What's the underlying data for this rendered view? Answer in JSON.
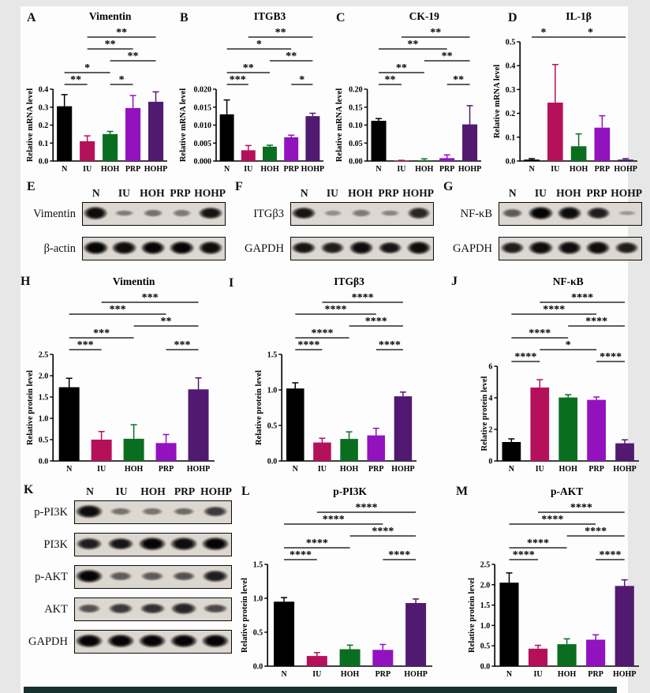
{
  "figure": {
    "background": "#e7e7e7",
    "canvas_color": "#fdfdfd",
    "bottom_bar_color": "#16312e",
    "categories": [
      "N",
      "IU",
      "HOH",
      "PRP",
      "HOHP"
    ],
    "group_colors": {
      "N": "#000000",
      "IU": "#b5115a",
      "HOH": "#0a6e21",
      "PRP": "#9212be",
      "HOHP": "#511a70"
    }
  },
  "chart_data": [
    {
      "panel": "A",
      "type": "bar",
      "title": "Vimentin",
      "ylabel": "Relative mRNA level",
      "ylim": [
        0,
        0.4
      ],
      "yticks": [
        0,
        0.1,
        0.2,
        0.3,
        0.4
      ],
      "ytick_decimals": 1,
      "categories": [
        "N",
        "IU",
        "HOH",
        "PRP",
        "HOHP"
      ],
      "values": [
        0.305,
        0.11,
        0.15,
        0.295,
        0.33
      ],
      "errors": [
        0.065,
        0.03,
        0.015,
        0.07,
        0.055
      ],
      "significance": [
        {
          "from": "N",
          "to": "IU",
          "stars": "**",
          "row": 0
        },
        {
          "from": "HOH",
          "to": "PRP",
          "stars": "*",
          "row": 0
        },
        {
          "from": "N",
          "to": "HOH",
          "stars": "*",
          "row": 1
        },
        {
          "from": "HOH",
          "to": "HOHP",
          "stars": "**",
          "row": 2
        },
        {
          "from": "IU",
          "to": "PRP",
          "stars": "**",
          "row": 3
        },
        {
          "from": "IU",
          "to": "HOHP",
          "stars": "**",
          "row": 4
        }
      ]
    },
    {
      "panel": "B",
      "type": "bar",
      "title": "ITGB3",
      "ylabel": "Relative mRNA level",
      "ylim": [
        0,
        0.02
      ],
      "yticks": [
        0,
        0.005,
        0.01,
        0.015,
        0.02
      ],
      "ytick_decimals": 3,
      "categories": [
        "N",
        "IU",
        "HOH",
        "PRP",
        "HOHP"
      ],
      "values": [
        0.013,
        0.003,
        0.004,
        0.0066,
        0.0125
      ],
      "errors": [
        0.004,
        0.0013,
        0.0004,
        0.0006,
        0.0008
      ],
      "significance": [
        {
          "from": "N",
          "to": "IU",
          "stars": "***",
          "row": 0
        },
        {
          "from": "PRP",
          "to": "HOHP",
          "stars": "*",
          "row": 0
        },
        {
          "from": "N",
          "to": "HOH",
          "stars": "**",
          "row": 1
        },
        {
          "from": "HOH",
          "to": "HOHP",
          "stars": "**",
          "row": 2
        },
        {
          "from": "N",
          "to": "PRP",
          "stars": "*",
          "row": 3
        },
        {
          "from": "IU",
          "to": "HOHP",
          "stars": "**",
          "row": 4
        }
      ]
    },
    {
      "panel": "C",
      "type": "bar",
      "title": "CK-19",
      "ylabel": "Relative mRNA level",
      "ylim": [
        0,
        0.2
      ],
      "yticks": [
        0,
        0.05,
        0.1,
        0.15,
        0.2
      ],
      "ytick_decimals": 2,
      "categories": [
        "N",
        "IU",
        "HOH",
        "PRP",
        "HOHP"
      ],
      "values": [
        0.112,
        0.001,
        0.002,
        0.008,
        0.102
      ],
      "errors": [
        0.006,
        0.001,
        0.004,
        0.009,
        0.052
      ],
      "significance": [
        {
          "from": "N",
          "to": "IU",
          "stars": "**",
          "row": 0
        },
        {
          "from": "PRP",
          "to": "HOHP",
          "stars": "**",
          "row": 0
        },
        {
          "from": "N",
          "to": "HOH",
          "stars": "**",
          "row": 1
        },
        {
          "from": "HOH",
          "to": "HOHP",
          "stars": "**",
          "row": 2
        },
        {
          "from": "N",
          "to": "PRP",
          "stars": "**",
          "row": 3
        },
        {
          "from": "IU",
          "to": "HOHP",
          "stars": "**",
          "row": 4
        }
      ]
    },
    {
      "panel": "D",
      "type": "bar",
      "title": "IL-1β",
      "ylabel": "Relative mRNA level",
      "ylim": [
        0,
        0.5
      ],
      "yticks": [
        0,
        0.1,
        0.2,
        0.3,
        0.4,
        0.5
      ],
      "ytick_decimals": 1,
      "categories": [
        "N",
        "IU",
        "HOH",
        "PRP",
        "HOHP"
      ],
      "values": [
        0.006,
        0.245,
        0.062,
        0.14,
        0.006
      ],
      "errors": [
        0.004,
        0.16,
        0.052,
        0.05,
        0.004
      ],
      "significance": [
        {
          "from": "N",
          "to": "IU",
          "stars": "*",
          "row": 0
        },
        {
          "from": "IU",
          "to": "HOHP",
          "stars": "*",
          "row": 0
        }
      ]
    },
    {
      "panel": "H",
      "type": "bar",
      "title": "Vimentin",
      "ylabel": "Relative protein level",
      "ylim": [
        0,
        2.5
      ],
      "yticks": [
        0,
        0.5,
        1,
        1.5,
        2,
        2.5
      ],
      "ytick_decimals": 1,
      "categories": [
        "N",
        "IU",
        "HOH",
        "PRP",
        "HOHP"
      ],
      "values": [
        1.73,
        0.5,
        0.52,
        0.42,
        1.68
      ],
      "errors": [
        0.21,
        0.19,
        0.33,
        0.2,
        0.27
      ],
      "significance": [
        {
          "from": "N",
          "to": "IU",
          "stars": "***",
          "row": 0
        },
        {
          "from": "PRP",
          "to": "HOHP",
          "stars": "***",
          "row": 0
        },
        {
          "from": "N",
          "to": "HOH",
          "stars": "***",
          "row": 1
        },
        {
          "from": "HOH",
          "to": "HOHP",
          "stars": "**",
          "row": 2
        },
        {
          "from": "N",
          "to": "PRP",
          "stars": "***",
          "row": 3
        },
        {
          "from": "IU",
          "to": "HOHP",
          "stars": "***",
          "row": 4
        }
      ]
    },
    {
      "panel": "I",
      "type": "bar",
      "title": "ITGβ3",
      "ylabel": "Relative protein level",
      "ylim": [
        0,
        1.5
      ],
      "yticks": [
        0,
        0.5,
        1,
        1.5
      ],
      "ytick_decimals": 1,
      "categories": [
        "N",
        "IU",
        "HOH",
        "PRP",
        "HOHP"
      ],
      "values": [
        1.02,
        0.26,
        0.31,
        0.36,
        0.91
      ],
      "errors": [
        0.08,
        0.06,
        0.1,
        0.1,
        0.06
      ],
      "significance": [
        {
          "from": "N",
          "to": "IU",
          "stars": "****",
          "row": 0
        },
        {
          "from": "PRP",
          "to": "HOHP",
          "stars": "****",
          "row": 0
        },
        {
          "from": "N",
          "to": "HOH",
          "stars": "****",
          "row": 1
        },
        {
          "from": "HOH",
          "to": "HOHP",
          "stars": "****",
          "row": 2
        },
        {
          "from": "N",
          "to": "PRP",
          "stars": "****",
          "row": 3
        },
        {
          "from": "IU",
          "to": "HOHP",
          "stars": "****",
          "row": 4
        }
      ]
    },
    {
      "panel": "J",
      "type": "bar",
      "title": "NF-κB",
      "ylabel": "Relative protein level",
      "ylim": [
        0,
        6
      ],
      "yticks": [
        0,
        2,
        4,
        6
      ],
      "ytick_decimals": 0,
      "categories": [
        "N",
        "IU",
        "HOH",
        "PRP",
        "HOHP"
      ],
      "values": [
        1.2,
        4.65,
        4.02,
        3.87,
        1.12
      ],
      "errors": [
        0.2,
        0.5,
        0.18,
        0.18,
        0.22
      ],
      "significance": [
        {
          "from": "N",
          "to": "IU",
          "stars": "****",
          "row": 0
        },
        {
          "from": "PRP",
          "to": "HOHP",
          "stars": "****",
          "row": 0
        },
        {
          "from": "IU",
          "to": "PRP",
          "stars": "*",
          "row": 1
        },
        {
          "from": "N",
          "to": "HOH",
          "stars": "****",
          "row": 2
        },
        {
          "from": "HOH",
          "to": "HOHP",
          "stars": "****",
          "row": 3
        },
        {
          "from": "N",
          "to": "PRP",
          "stars": "****",
          "row": 4
        },
        {
          "from": "IU",
          "to": "HOHP",
          "stars": "****",
          "row": 5
        }
      ]
    },
    {
      "panel": "L",
      "type": "bar",
      "title": "p-PI3K",
      "ylabel": "Relative protein level",
      "ylim": [
        0,
        1.5
      ],
      "yticks": [
        0,
        0.5,
        1,
        1.5
      ],
      "ytick_decimals": 1,
      "categories": [
        "N",
        "IU",
        "HOH",
        "PRP",
        "HOHP"
      ],
      "values": [
        0.95,
        0.15,
        0.25,
        0.24,
        0.93
      ],
      "errors": [
        0.06,
        0.05,
        0.06,
        0.08,
        0.06
      ],
      "significance": [
        {
          "from": "N",
          "to": "IU",
          "stars": "****",
          "row": 0
        },
        {
          "from": "PRP",
          "to": "HOHP",
          "stars": "****",
          "row": 0
        },
        {
          "from": "N",
          "to": "HOH",
          "stars": "****",
          "row": 1
        },
        {
          "from": "HOH",
          "to": "HOHP",
          "stars": "****",
          "row": 2
        },
        {
          "from": "N",
          "to": "PRP",
          "stars": "****",
          "row": 3
        },
        {
          "from": "IU",
          "to": "HOHP",
          "stars": "****",
          "row": 4
        }
      ]
    },
    {
      "panel": "M",
      "type": "bar",
      "title": "p-AKT",
      "ylabel": "Relative protein level",
      "ylim": [
        0,
        2.5
      ],
      "yticks": [
        0,
        0.5,
        1,
        1.5,
        2,
        2.5
      ],
      "ytick_decimals": 1,
      "categories": [
        "N",
        "IU",
        "HOH",
        "PRP",
        "HOHP"
      ],
      "values": [
        2.05,
        0.43,
        0.54,
        0.65,
        1.97
      ],
      "errors": [
        0.24,
        0.08,
        0.13,
        0.12,
        0.15
      ],
      "significance": [
        {
          "from": "N",
          "to": "IU",
          "stars": "****",
          "row": 0
        },
        {
          "from": "PRP",
          "to": "HOHP",
          "stars": "****",
          "row": 0
        },
        {
          "from": "N",
          "to": "HOH",
          "stars": "****",
          "row": 1
        },
        {
          "from": "HOH",
          "to": "HOHP",
          "stars": "****",
          "row": 2
        },
        {
          "from": "N",
          "to": "PRP",
          "stars": "****",
          "row": 3
        },
        {
          "from": "IU",
          "to": "HOHP",
          "stars": "****",
          "row": 4
        }
      ]
    }
  ],
  "blots": [
    {
      "panel": "E",
      "lanes": [
        "N",
        "IU",
        "HOH",
        "PRP",
        "HOHP"
      ],
      "rows": [
        {
          "label": "Vimentin",
          "bands": [
            0.95,
            0.3,
            0.38,
            0.32,
            0.9
          ]
        },
        {
          "label": "β-actin",
          "bands": [
            1,
            0.95,
            1,
            1,
            0.95
          ]
        }
      ]
    },
    {
      "panel": "F",
      "lanes": [
        "N",
        "IU",
        "HOH",
        "PRP",
        "HOHP"
      ],
      "rows": [
        {
          "label": "ITGβ3",
          "bands": [
            0.9,
            0.2,
            0.32,
            0.25,
            0.8
          ]
        },
        {
          "label": "GAPDH",
          "bands": [
            0.9,
            0.85,
            0.95,
            0.9,
            0.95
          ]
        }
      ]
    },
    {
      "panel": "G",
      "lanes": [
        "N",
        "IU",
        "HOH",
        "PRP",
        "HOHP"
      ],
      "rows": [
        {
          "label": "NF-κB",
          "bands": [
            0.5,
            1,
            0.95,
            0.85,
            0.15
          ]
        },
        {
          "label": "GAPDH",
          "bands": [
            0.85,
            0.95,
            0.95,
            0.95,
            0.85
          ]
        }
      ]
    },
    {
      "panel": "K",
      "lanes": [
        "N",
        "IU",
        "HOH",
        "PRP",
        "HOHP"
      ],
      "rows": [
        {
          "label": "p-PI3K",
          "bands": [
            0.95,
            0.35,
            0.35,
            0.4,
            0.7
          ]
        },
        {
          "label": "PI3K",
          "bands": [
            0.85,
            0.9,
            1,
            0.95,
            1
          ]
        },
        {
          "label": "p-AKT",
          "bands": [
            1,
            0.5,
            0.5,
            0.55,
            0.85
          ]
        },
        {
          "label": "AKT",
          "bands": [
            0.55,
            0.7,
            0.75,
            0.8,
            0.6
          ]
        },
        {
          "label": "GAPDH",
          "bands": [
            1,
            1,
            1,
            1,
            1
          ]
        }
      ]
    }
  ]
}
